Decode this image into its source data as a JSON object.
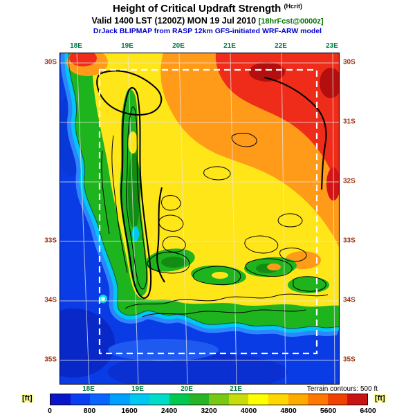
{
  "header": {
    "title_main": "Height of Critical Updraft Strength",
    "title_unit": "(Hcrit)",
    "valid_line": "Valid 1400 LST (1200Z) MON 19 Jul 2010",
    "fcst_tag": "[18hrFcst@0000z]",
    "model_line": "DrJack BLIPMAP from RASP 12km GFS-initiated WRF-ARW model"
  },
  "axes": {
    "lon_top": [
      {
        "text": "18E",
        "line": 0
      },
      {
        "text": "19E",
        "line": 1
      },
      {
        "text": "20E",
        "line": 2
      },
      {
        "text": "21E",
        "line": 3
      },
      {
        "text": "22E",
        "line": 4
      },
      {
        "text": "23E",
        "line": 5
      }
    ],
    "lon_bottom": [
      {
        "text": "18E",
        "line": 0
      },
      {
        "text": "19E",
        "line": 1
      },
      {
        "text": "20E",
        "line": 2
      },
      {
        "text": "21E",
        "line": 3
      }
    ],
    "lat_left": [
      {
        "text": "30S",
        "line": 0
      },
      {
        "text": "33S",
        "line": 3
      },
      {
        "text": "34S",
        "line": 4
      },
      {
        "text": "35S",
        "line": 5
      }
    ],
    "lat_right": [
      {
        "text": "30S",
        "line": 0
      },
      {
        "text": "31S",
        "line": 1
      },
      {
        "text": "32S",
        "line": 2
      },
      {
        "text": "33S",
        "line": 3
      },
      {
        "text": "34S",
        "line": 4
      },
      {
        "text": "35S",
        "line": 5
      }
    ]
  },
  "map_note": "Terrain contours: 500 ft",
  "colorbar": {
    "unit": "[ft]",
    "tick_labels": [
      "0",
      "800",
      "1600",
      "2400",
      "3200",
      "4000",
      "4800",
      "5600",
      "6400"
    ],
    "segment_colors": [
      "#0a14c8",
      "#0a3cf0",
      "#0a64ff",
      "#00a0ff",
      "#00c8f0",
      "#00dcc8",
      "#00c850",
      "#28b428",
      "#78c814",
      "#c8dc0a",
      "#ffff00",
      "#ffd700",
      "#ffaa00",
      "#ff7800",
      "#f04100",
      "#c81414"
    ]
  }
}
